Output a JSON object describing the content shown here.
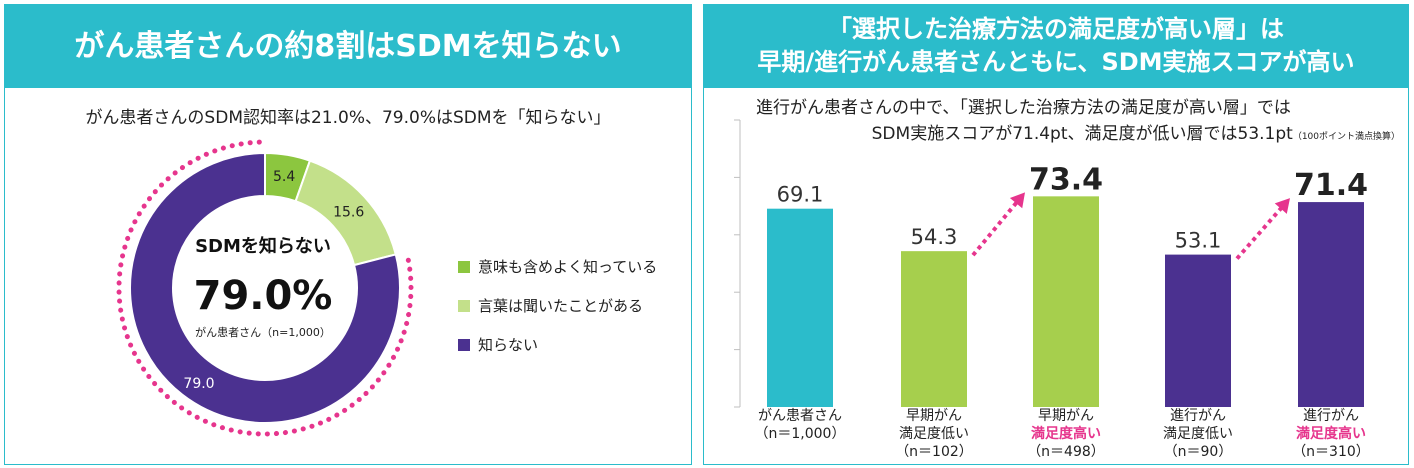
{
  "left": {
    "title": "がん患者さんの約8割はSDMを知らない",
    "subtitle": "がん患者さんのSDM認知率は21.0%、79.0%はSDMを「知らない」",
    "center_label": "SDMを知らない",
    "center_value": "79.0%",
    "center_note": "がん患者さん（n=1,000）"
  },
  "right": {
    "title_line1": "「選択した治療方法の満足度が高い層」は",
    "title_line2": "早期/進行がん患者さんともに、SDM実施スコアが高い",
    "subtitle_line1": "進行がん患者さんの中で、「選択した治療方法の満足度が高い層」では",
    "subtitle_line2": "SDM実施スコアが71.4pt、満足度が低い層では53.1pt",
    "subtitle_note": "（100ポイント満点換算）"
  },
  "chart_data": [
    {
      "type": "pie",
      "donut": true,
      "categories": [
        "意味も含めよく知っている",
        "言葉は聞いたことがある",
        "知らない"
      ],
      "values": [
        5.4,
        15.6,
        79.0
      ],
      "value_labels": [
        "5.4",
        "15.6",
        "79.0"
      ],
      "colors": [
        "#8cc63f",
        "#c3e08a",
        "#4b3190"
      ],
      "legend_position": "right"
    },
    {
      "type": "bar",
      "categories": [
        {
          "line1": "がん患者さん",
          "line2": "",
          "line3": "（n＝1,000）",
          "highlight": false
        },
        {
          "line1": "早期がん",
          "line2": "満足度低い",
          "line3": "（n＝102）",
          "highlight": false
        },
        {
          "line1": "早期がん",
          "line2": "満足度高い",
          "line3": "（n＝498）",
          "highlight": true
        },
        {
          "line1": "進行がん",
          "line2": "満足度低い",
          "line3": "（n＝90）",
          "highlight": false
        },
        {
          "line1": "進行がん",
          "line2": "満足度高い",
          "line3": "（n＝310）",
          "highlight": true
        }
      ],
      "values": [
        69.1,
        54.3,
        73.4,
        53.1,
        71.4
      ],
      "value_labels": [
        "69.1",
        "54.3",
        "73.4",
        "53.1",
        "71.4"
      ],
      "colors": [
        "#2bbccb",
        "#a6cf4d",
        "#a6cf4d",
        "#4b3190",
        "#4b3190"
      ],
      "ylim": [
        0,
        100
      ],
      "arrows": [
        [
          1,
          2
        ],
        [
          3,
          4
        ]
      ],
      "arrow_color": "#e6358d"
    }
  ]
}
